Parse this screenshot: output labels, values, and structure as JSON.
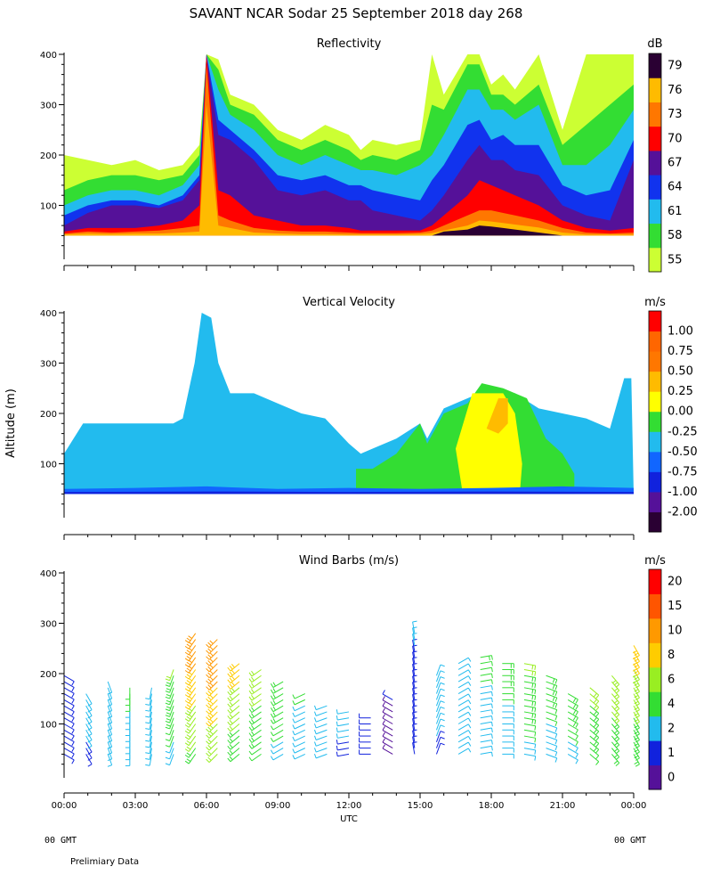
{
  "header": {
    "title": "SAVANT  NCAR Sodar  25 September 2018  day 268",
    "ylabel": "Altitude (m)",
    "xlabel": "UTC",
    "left_footer": "00 GMT",
    "right_footer": "00 GMT",
    "note": "Prelimiary Data"
  },
  "chart_data": [
    {
      "type": "heatmap",
      "title": "Reflectivity",
      "units": "dB",
      "xlim": [
        0,
        24
      ],
      "ylim": [
        0,
        400
      ],
      "yticks": [
        100,
        200,
        300,
        400
      ],
      "xticks": [
        "00:00",
        "03:00",
        "06:00",
        "09:00",
        "12:00",
        "15:00",
        "18:00",
        "21:00",
        "00:00"
      ],
      "legend_labels": [
        "55",
        "58",
        "61",
        "64",
        "67",
        "70",
        "73",
        "76",
        "79"
      ],
      "legend_colors": [
        "#ccff33",
        "#33dd33",
        "#22bbee",
        "#1133ee",
        "#551199",
        "#ff0000",
        "#ff7700",
        "#ffbb00",
        "#2a0033"
      ],
      "base_altitude": 40,
      "profile_times": [
        0,
        1,
        2,
        3,
        4,
        5,
        5.7,
        6,
        6.5,
        7,
        8,
        9,
        10,
        11,
        12,
        12.5,
        13,
        14,
        15,
        15.5,
        16,
        17,
        17.5,
        18,
        18.5,
        19,
        20,
        21,
        22,
        23,
        24
      ],
      "bands": [
        {
          "label": "55",
          "tops": [
            200,
            190,
            180,
            190,
            170,
            180,
            220,
            400,
            390,
            320,
            300,
            250,
            230,
            260,
            240,
            210,
            230,
            220,
            230,
            400,
            320,
            400,
            400,
            340,
            360,
            330,
            400,
            250,
            400,
            400,
            400
          ]
        },
        {
          "label": "58",
          "tops": [
            130,
            150,
            160,
            160,
            150,
            160,
            200,
            400,
            370,
            300,
            280,
            230,
            210,
            230,
            210,
            190,
            200,
            190,
            210,
            300,
            290,
            380,
            380,
            320,
            320,
            300,
            340,
            220,
            260,
            300,
            340
          ]
        },
        {
          "label": "61",
          "tops": [
            100,
            120,
            130,
            130,
            120,
            140,
            180,
            400,
            330,
            280,
            250,
            200,
            180,
            200,
            180,
            170,
            170,
            160,
            180,
            200,
            240,
            330,
            330,
            290,
            290,
            270,
            300,
            180,
            180,
            220,
            290
          ]
        },
        {
          "label": "64",
          "tops": [
            80,
            100,
            110,
            110,
            100,
            120,
            160,
            400,
            270,
            250,
            210,
            160,
            150,
            160,
            140,
            140,
            130,
            120,
            110,
            150,
            180,
            260,
            270,
            230,
            240,
            220,
            220,
            140,
            120,
            130,
            230
          ]
        },
        {
          "label": "67",
          "tops": [
            60,
            85,
            100,
            100,
            95,
            110,
            150,
            400,
            240,
            230,
            190,
            130,
            120,
            130,
            110,
            110,
            90,
            80,
            70,
            90,
            120,
            190,
            220,
            190,
            190,
            170,
            160,
            100,
            80,
            70,
            190
          ]
        },
        {
          "label": "70",
          "tops": [
            48,
            55,
            55,
            55,
            60,
            70,
            100,
            400,
            130,
            120,
            80,
            70,
            60,
            60,
            55,
            50,
            50,
            50,
            50,
            60,
            80,
            120,
            150,
            140,
            130,
            120,
            100,
            70,
            55,
            50,
            55
          ]
        },
        {
          "label": "73",
          "tops": [
            44,
            48,
            46,
            48,
            50,
            55,
            60,
            380,
            80,
            70,
            55,
            50,
            48,
            48,
            46,
            45,
            45,
            45,
            46,
            50,
            60,
            80,
            90,
            90,
            85,
            80,
            70,
            55,
            46,
            44,
            46
          ]
        },
        {
          "label": "76",
          "tops": [
            42,
            44,
            43,
            44,
            44,
            46,
            48,
            300,
            60,
            55,
            46,
            44,
            43,
            43,
            42,
            42,
            42,
            42,
            43,
            45,
            50,
            60,
            70,
            68,
            65,
            62,
            56,
            46,
            42,
            42,
            42
          ]
        },
        {
          "label": "79",
          "tops": [
            40,
            40,
            40,
            40,
            40,
            40,
            40,
            40,
            40,
            40,
            40,
            40,
            40,
            40,
            40,
            40,
            40,
            40,
            40,
            40,
            48,
            52,
            60,
            58,
            55,
            52,
            46,
            40,
            40,
            40,
            40
          ]
        }
      ]
    },
    {
      "type": "heatmap",
      "title": "Vertical Velocity",
      "units": "m/s",
      "xlim": [
        0,
        24
      ],
      "ylim": [
        0,
        400
      ],
      "yticks": [
        100,
        200,
        300,
        400
      ],
      "xticks": [
        "00:00",
        "03:00",
        "06:00",
        "09:00",
        "12:00",
        "15:00",
        "18:00",
        "21:00",
        "00:00"
      ],
      "legend_labels": [
        "-2.00",
        "-1.00",
        "-0.75",
        "-0.50",
        "-0.25",
        "0.00",
        "0.25",
        "0.50",
        "0.75",
        "1.00"
      ],
      "legend_colors": [
        "#2a0033",
        "#551199",
        "#1122dd",
        "#1166ff",
        "#22bbee",
        "#33dd33",
        "#ffff00",
        "#ffbb00",
        "#ff7700",
        "#ff6600",
        "#ff0000"
      ],
      "regions": [
        {
          "color": "#22bbee",
          "outline": [
            [
              0,
              40
            ],
            [
              0,
              120
            ],
            [
              0.8,
              180
            ],
            [
              2,
              180
            ],
            [
              3,
              180
            ],
            [
              4.6,
              180
            ],
            [
              5,
              190
            ],
            [
              5.5,
              300
            ],
            [
              5.8,
              400
            ],
            [
              6.2,
              390
            ],
            [
              6.5,
              300
            ],
            [
              7,
              240
            ],
            [
              8,
              240
            ],
            [
              9,
              220
            ],
            [
              10,
              200
            ],
            [
              11,
              190
            ],
            [
              12,
              140
            ],
            [
              12.5,
              120
            ],
            [
              13,
              130
            ],
            [
              14,
              150
            ],
            [
              15,
              180
            ],
            [
              15.3,
              150
            ],
            [
              16,
              210
            ],
            [
              17,
              230
            ],
            [
              18,
              250
            ],
            [
              19,
              240
            ],
            [
              20,
              210
            ],
            [
              21,
              200
            ],
            [
              22,
              190
            ],
            [
              23,
              170
            ],
            [
              23.6,
              270
            ],
            [
              23.9,
              270
            ],
            [
              24,
              40
            ]
          ]
        },
        {
          "color": "#33dd33",
          "outline": [
            [
              12.3,
              40
            ],
            [
              12.3,
              90
            ],
            [
              13,
              90
            ],
            [
              14,
              120
            ],
            [
              15,
              180
            ],
            [
              15.3,
              140
            ],
            [
              16,
              200
            ],
            [
              17,
              220
            ],
            [
              17.6,
              260
            ],
            [
              18.5,
              250
            ],
            [
              19.5,
              230
            ],
            [
              20.3,
              150
            ],
            [
              21,
              120
            ],
            [
              21.5,
              80
            ],
            [
              21.5,
              40
            ]
          ]
        },
        {
          "color": "#ffff00",
          "outline": [
            [
              16.8,
              40
            ],
            [
              16.5,
              130
            ],
            [
              17.2,
              240
            ],
            [
              18.5,
              240
            ],
            [
              19,
              200
            ],
            [
              19.3,
              100
            ],
            [
              19.2,
              40
            ]
          ]
        },
        {
          "color": "#ffbb00",
          "outline": [
            [
              17.8,
              170
            ],
            [
              18.3,
              230
            ],
            [
              18.7,
              230
            ],
            [
              18.7,
              180
            ],
            [
              18.3,
              160
            ]
          ]
        },
        {
          "color": "#1166ff",
          "outline": [
            [
              0,
              40
            ],
            [
              0,
              50
            ],
            [
              3,
              52
            ],
            [
              6,
              55
            ],
            [
              9,
              50
            ],
            [
              12,
              52
            ],
            [
              15,
              50
            ],
            [
              18,
              52
            ],
            [
              21,
              55
            ],
            [
              24,
              52
            ],
            [
              24,
              40
            ]
          ]
        },
        {
          "color": "#1122dd",
          "outline": [
            [
              0,
              40
            ],
            [
              0,
              44
            ],
            [
              6,
              45
            ],
            [
              12,
              44
            ],
            [
              18,
              45
            ],
            [
              24,
              44
            ],
            [
              24,
              40
            ]
          ]
        }
      ]
    },
    {
      "type": "barbs",
      "title": "Wind Barbs (m/s)",
      "units": "m/s",
      "xlim": [
        0,
        24
      ],
      "ylim": [
        0,
        400
      ],
      "yticks": [
        100,
        200,
        300,
        400
      ],
      "xticks": [
        "00:00",
        "03:00",
        "06:00",
        "09:00",
        "12:00",
        "15:00",
        "18:00",
        "21:00",
        "00:00"
      ],
      "legend_labels": [
        "0",
        "1",
        "2",
        "4",
        "6",
        "8",
        "10",
        "15",
        "20"
      ],
      "legend_colors": [
        "#551199",
        "#1122dd",
        "#22bbee",
        "#33dd33",
        "#99ee22",
        "#ffcc00",
        "#ff9900",
        "#ff5500",
        "#ff0000"
      ],
      "speed_levels": [
        0,
        1,
        2,
        4,
        6,
        8,
        10,
        15,
        20
      ],
      "tops": [
        200,
        170,
        190,
        180,
        175,
        210,
        290,
        270,
        230,
        210,
        190,
        160,
        140,
        130,
        120,
        150,
        290,
        200,
        230,
        240,
        230,
        220,
        200,
        170,
        180,
        200,
        260
      ],
      "speeds": [
        1.5,
        2.5,
        3,
        4,
        3.5,
        5,
        8,
        9,
        7,
        6,
        5,
        4,
        3,
        2.5,
        1.5,
        1,
        1.5,
        2.5,
        3,
        3.5,
        4,
        5,
        4.5,
        5,
        6,
        6.5,
        6.5
      ],
      "dirs": [
        120,
        150,
        160,
        180,
        190,
        200,
        215,
        225,
        230,
        235,
        240,
        245,
        250,
        260,
        270,
        300,
        350,
        20,
        60,
        80,
        90,
        100,
        110,
        120,
        130,
        140,
        150
      ]
    }
  ]
}
